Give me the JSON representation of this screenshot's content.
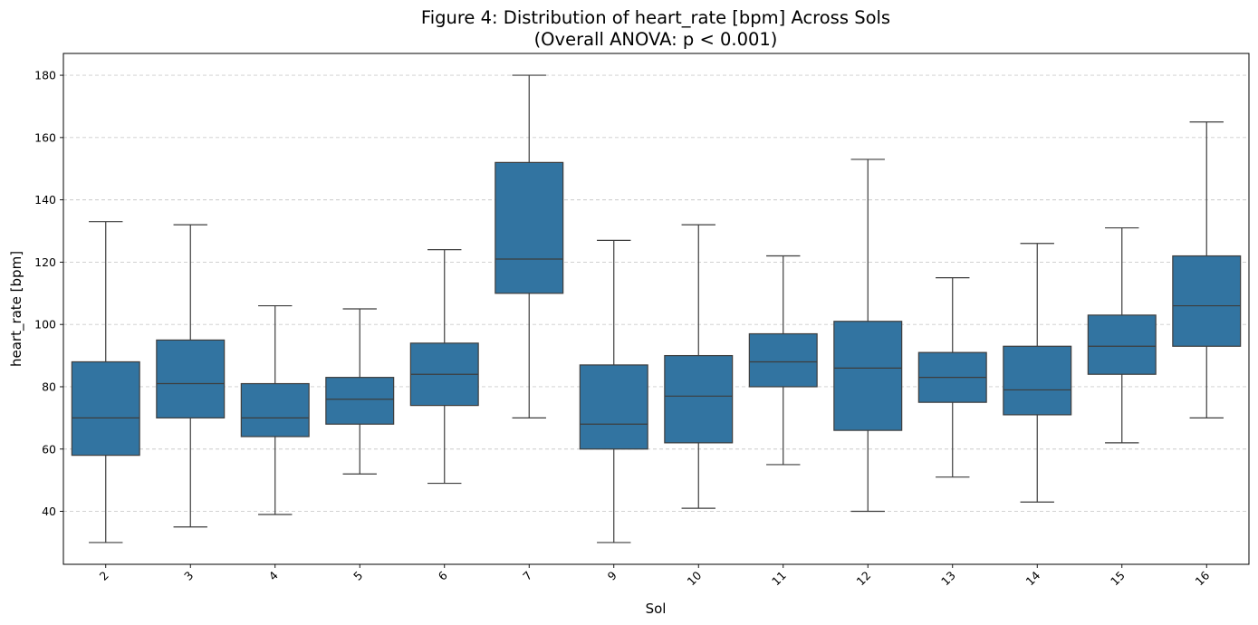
{
  "chart_data": {
    "type": "box",
    "title_line1": "Figure 4: Distribution of heart_rate [bpm] Across Sols",
    "title_line2": "(Overall ANOVA: p < 0.001)",
    "xlabel": "Sol",
    "ylabel": "heart_rate [bpm]",
    "ylim": [
      23,
      187
    ],
    "yticks": [
      40,
      60,
      80,
      100,
      120,
      140,
      160,
      180
    ],
    "grid": "y-dashed",
    "box_color": "#3274a1",
    "line_color": "#3d3d3d",
    "categories": [
      "2",
      "3",
      "4",
      "5",
      "6",
      "7",
      "9",
      "10",
      "11",
      "12",
      "13",
      "14",
      "15",
      "16"
    ],
    "boxes": [
      {
        "sol": "2",
        "whisker_low": 30,
        "q1": 58,
        "median": 70,
        "q3": 88,
        "whisker_high": 133
      },
      {
        "sol": "3",
        "whisker_low": 35,
        "q1": 70,
        "median": 81,
        "q3": 95,
        "whisker_high": 132
      },
      {
        "sol": "4",
        "whisker_low": 39,
        "q1": 64,
        "median": 70,
        "q3": 81,
        "whisker_high": 106
      },
      {
        "sol": "5",
        "whisker_low": 52,
        "q1": 68,
        "median": 76,
        "q3": 83,
        "whisker_high": 105
      },
      {
        "sol": "6",
        "whisker_low": 49,
        "q1": 74,
        "median": 84,
        "q3": 94,
        "whisker_high": 124
      },
      {
        "sol": "7",
        "whisker_low": 70,
        "q1": 110,
        "median": 121,
        "q3": 152,
        "whisker_high": 180
      },
      {
        "sol": "9",
        "whisker_low": 30,
        "q1": 60,
        "median": 68,
        "q3": 87,
        "whisker_high": 127
      },
      {
        "sol": "10",
        "whisker_low": 41,
        "q1": 62,
        "median": 77,
        "q3": 90,
        "whisker_high": 132
      },
      {
        "sol": "11",
        "whisker_low": 55,
        "q1": 80,
        "median": 88,
        "q3": 97,
        "whisker_high": 122
      },
      {
        "sol": "12",
        "whisker_low": 40,
        "q1": 66,
        "median": 86,
        "q3": 101,
        "whisker_high": 153
      },
      {
        "sol": "13",
        "whisker_low": 51,
        "q1": 75,
        "median": 83,
        "q3": 91,
        "whisker_high": 115
      },
      {
        "sol": "14",
        "whisker_low": 43,
        "q1": 71,
        "median": 79,
        "q3": 93,
        "whisker_high": 126
      },
      {
        "sol": "15",
        "whisker_low": 62,
        "q1": 84,
        "median": 93,
        "q3": 103,
        "whisker_high": 131
      },
      {
        "sol": "16",
        "whisker_low": 70,
        "q1": 93,
        "median": 106,
        "q3": 122,
        "whisker_high": 165
      }
    ]
  }
}
